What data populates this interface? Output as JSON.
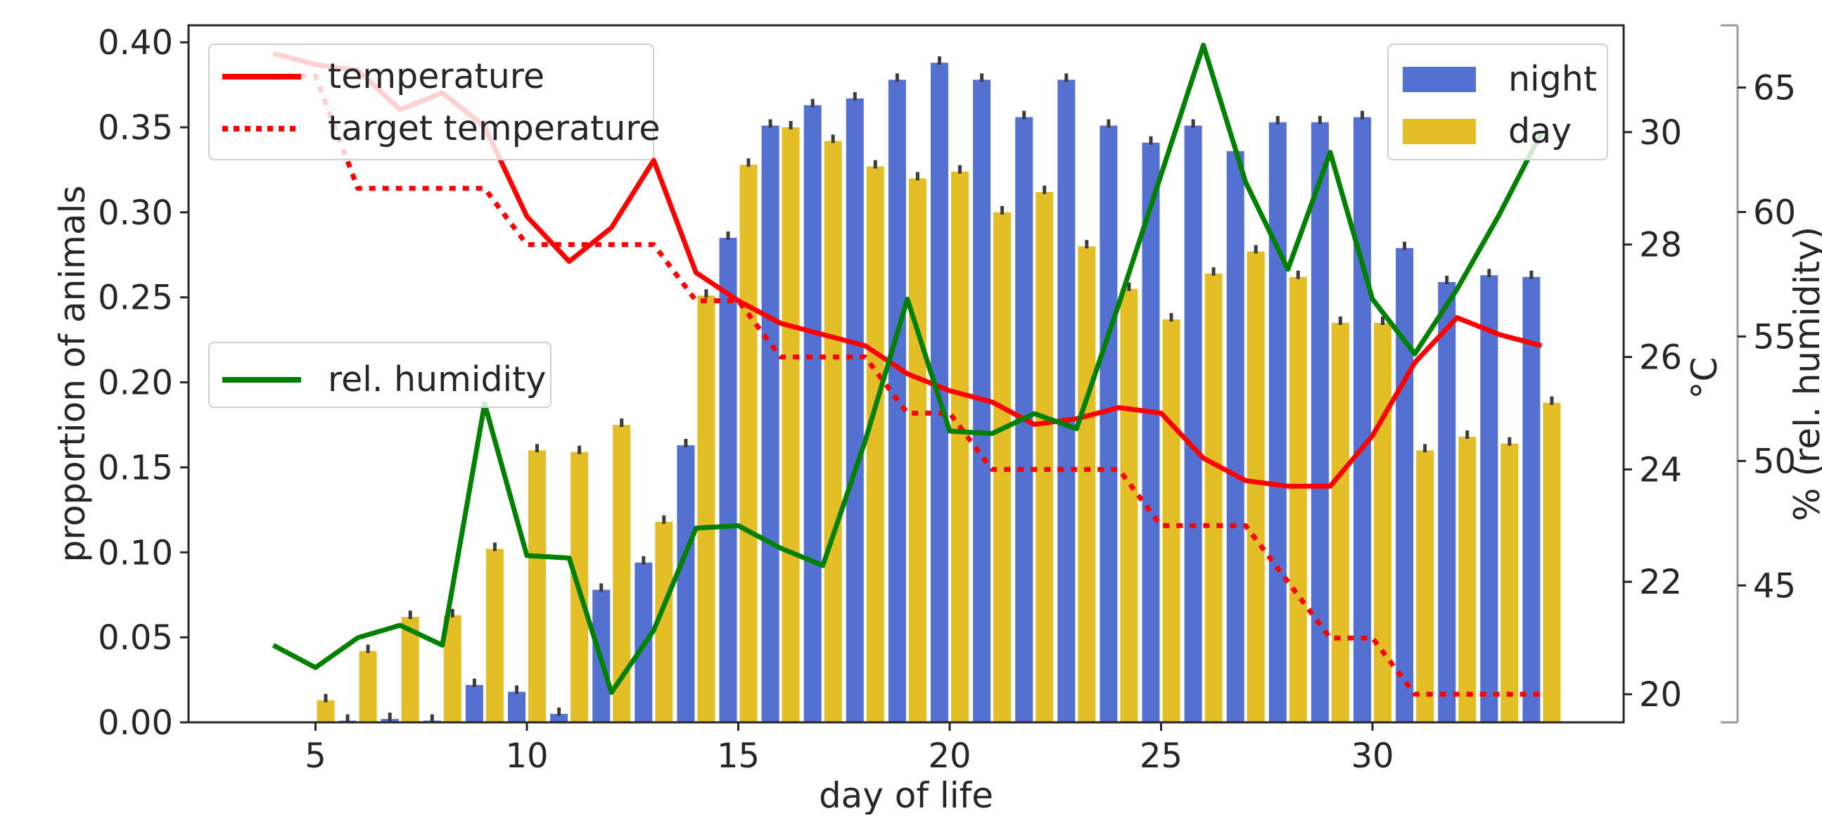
{
  "chart_data": {
    "type": "bar",
    "xlabel": "day of life",
    "ylabel": "proportion of animals",
    "ylim": [
      0,
      0.41
    ],
    "yticks": [
      "0.00",
      "0.05",
      "0.10",
      "0.15",
      "0.20",
      "0.25",
      "0.30",
      "0.35",
      "0.40"
    ],
    "xticks": [
      "5",
      "10",
      "15",
      "20",
      "25",
      "30"
    ],
    "grid": false,
    "x": [
      4,
      5,
      6,
      7,
      8,
      9,
      10,
      11,
      12,
      13,
      14,
      15,
      16,
      17,
      18,
      19,
      20,
      21,
      22,
      23,
      24,
      25,
      26,
      27,
      28,
      29,
      30,
      31,
      32,
      33,
      34
    ],
    "bar_series": [
      {
        "name": "night",
        "color": "#5470d0",
        "values": [
          0.0005,
          0.0,
          0.001,
          0.002,
          0.001,
          0.022,
          0.018,
          0.005,
          0.078,
          0.094,
          0.163,
          0.285,
          0.351,
          0.363,
          0.367,
          0.378,
          0.388,
          0.378,
          0.356,
          0.378,
          0.351,
          0.341,
          0.351,
          0.336,
          0.353,
          0.353,
          0.356,
          0.279,
          0.259,
          0.263,
          0.262
        ]
      },
      {
        "name": "day",
        "color": "#e3be27",
        "values": [
          0.0,
          0.013,
          0.042,
          0.062,
          0.063,
          0.102,
          0.16,
          0.159,
          0.175,
          0.118,
          0.251,
          0.328,
          0.35,
          0.342,
          0.327,
          0.32,
          0.324,
          0.3,
          0.312,
          0.28,
          0.255,
          0.237,
          0.264,
          0.277,
          0.262,
          0.235,
          0.235,
          0.16,
          0.168,
          0.164,
          0.188
        ]
      }
    ],
    "temperature_axis": {
      "label": "°C",
      "ylim": [
        19.5,
        31.9
      ],
      "ticks": [
        "20",
        "22",
        "24",
        "26",
        "28",
        "30"
      ]
    },
    "humidity_axis": {
      "label": "% (rel. humidity)",
      "ylim": [
        39.5,
        67.5
      ],
      "ticks": [
        "45",
        "50",
        "55",
        "60",
        "65"
      ]
    },
    "line_series": [
      {
        "name": "temperature",
        "axis": "temperature",
        "color": "#ff0000",
        "style": "solid",
        "x": [
          4,
          5,
          6,
          7,
          8,
          9,
          10,
          11,
          12,
          13,
          14,
          15,
          16,
          17,
          18,
          19,
          20,
          21,
          22,
          23,
          24,
          25,
          26,
          27,
          28,
          29,
          30,
          31,
          32,
          33,
          34
        ],
        "values": [
          31.4,
          31.2,
          31.1,
          30.4,
          30.7,
          30.1,
          28.5,
          27.7,
          28.3,
          29.5,
          27.5,
          27.0,
          26.6,
          26.4,
          26.2,
          25.7,
          25.4,
          25.2,
          24.8,
          24.9,
          25.1,
          25.0,
          24.2,
          23.8,
          23.7,
          23.7,
          24.6,
          25.9,
          26.7,
          26.4,
          26.2
        ]
      },
      {
        "name": "target temperature",
        "axis": "temperature",
        "color": "#ff0000",
        "style": "dotted",
        "x": [
          4,
          5,
          6,
          7,
          8,
          9,
          10,
          11,
          12,
          13,
          14,
          15,
          16,
          17,
          18,
          19,
          20,
          21,
          22,
          23,
          24,
          25,
          26,
          27,
          28,
          29,
          30,
          31,
          32,
          33,
          34
        ],
        "values": [
          31.0,
          31.0,
          29.0,
          29.0,
          29.0,
          29.0,
          28.0,
          28.0,
          28.0,
          28.0,
          27.0,
          27.0,
          26.0,
          26.0,
          26.0,
          25.0,
          25.0,
          24.0,
          24.0,
          24.0,
          24.0,
          23.0,
          23.0,
          23.0,
          22.0,
          21.0,
          21.0,
          20.0,
          20.0,
          20.0,
          20.0
        ]
      },
      {
        "name": "rel. humidity",
        "axis": "humidity",
        "color": "#008000",
        "style": "solid",
        "x": [
          4,
          5,
          6,
          7,
          8,
          9,
          10,
          11,
          12,
          13,
          14,
          15,
          16,
          17,
          18,
          19,
          20,
          21,
          22,
          23,
          24,
          25,
          26,
          27,
          28,
          29,
          30,
          31,
          32,
          33,
          34
        ],
        "values": [
          42.6,
          41.7,
          42.9,
          43.4,
          42.6,
          52.3,
          46.2,
          46.1,
          40.7,
          43.2,
          47.3,
          47.4,
          46.5,
          45.8,
          50.8,
          56.5,
          51.2,
          51.1,
          51.9,
          51.3,
          56.3,
          61.5,
          66.7,
          61.2,
          57.7,
          62.4,
          56.5,
          54.3,
          56.9,
          59.9,
          63.2
        ]
      }
    ],
    "legends": {
      "temperature_legend": {
        "position": "upper left",
        "items": [
          {
            "label": "temperature",
            "style": "solid",
            "color": "#ff0000"
          },
          {
            "label": "target temperature",
            "style": "dotted",
            "color": "#ff0000"
          }
        ]
      },
      "humidity_legend": {
        "position": "center left",
        "items": [
          {
            "label": "rel. humidity",
            "style": "solid",
            "color": "#008000"
          }
        ]
      },
      "bar_legend": {
        "position": "upper right",
        "items": [
          {
            "label": "night",
            "color": "#5470d0"
          },
          {
            "label": "day",
            "color": "#e3be27"
          }
        ]
      }
    }
  }
}
